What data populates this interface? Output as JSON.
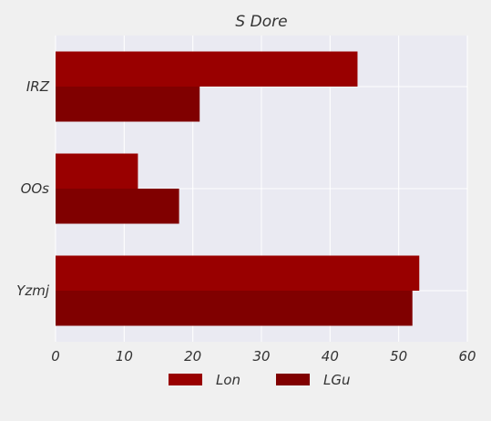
{
  "chart_data": {
    "type": "bar",
    "orientation": "horizontal",
    "title": "S Dore",
    "xlabel": "",
    "ylabel": "",
    "categories": [
      "IRZ",
      "OOs",
      "Yzmj"
    ],
    "series": [
      {
        "name": "Lon",
        "values": [
          44,
          12,
          53
        ],
        "color": "#990000"
      },
      {
        "name": "LGu",
        "values": [
          21,
          18,
          52
        ],
        "color": "#800000"
      }
    ],
    "xlim": [
      0,
      60
    ],
    "xticks": [
      0,
      10,
      20,
      30,
      40,
      50,
      60
    ],
    "grid": true,
    "legend_position": "bottom-center",
    "plot_background": "#eaeaf2",
    "figure_background": "#f0f0f0"
  }
}
